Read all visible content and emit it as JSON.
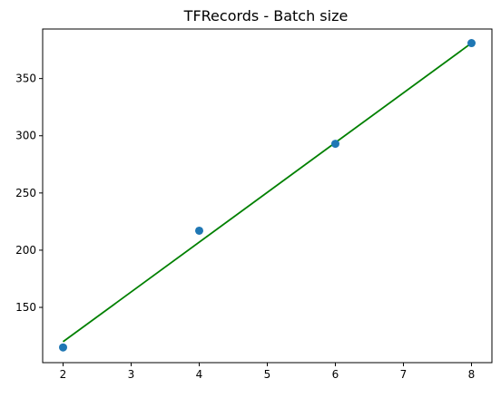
{
  "chart_data": {
    "type": "scatter",
    "title": "TFRecords - Batch size",
    "xlabel": "",
    "ylabel": "",
    "xlim": [
      1.7,
      8.3
    ],
    "ylim": [
      101.7,
      393.3
    ],
    "xticks": [
      2,
      3,
      4,
      5,
      6,
      7,
      8
    ],
    "yticks": [
      150,
      200,
      250,
      300,
      350
    ],
    "grid": false,
    "legend": false,
    "series": [
      {
        "type": "scatter",
        "color": "#1f77b4",
        "x": [
          2,
          4,
          6,
          8
        ],
        "y": [
          115,
          217,
          293,
          381
        ]
      },
      {
        "type": "line",
        "color": "#008000",
        "x": [
          2,
          8
        ],
        "y": [
          120,
          381
        ]
      }
    ]
  }
}
